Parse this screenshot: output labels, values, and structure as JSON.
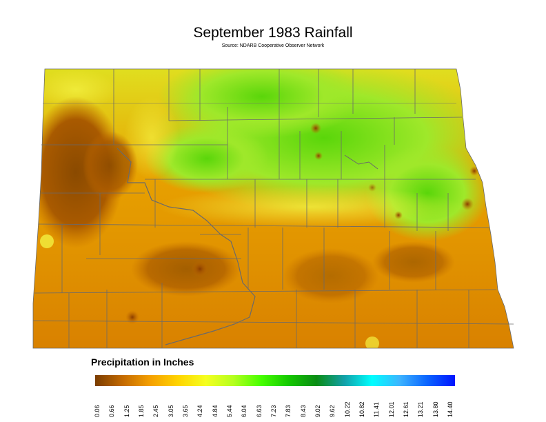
{
  "title": "September 1983 Rainfall",
  "subtitle": "Source: NDARB Cooperative Observer Network",
  "legend": {
    "title": "Precipitation in Inches",
    "ticks": [
      "0.06",
      "0.66",
      "1.25",
      "1.85",
      "2.45",
      "3.05",
      "3.65",
      "4.24",
      "4.84",
      "5.44",
      "6.04",
      "6.63",
      "7.23",
      "7.83",
      "8.43",
      "9.02",
      "9.62",
      "10.22",
      "10.82",
      "11.41",
      "12.01",
      "12.61",
      "13.21",
      "13.80",
      "14.40"
    ],
    "colors": [
      "#7a3c00",
      "#c46a00",
      "#f5a000",
      "#ffd400",
      "#f5ff20",
      "#b4ff1e",
      "#46ff00",
      "#14c800",
      "#0a8c14",
      "#12a0a8",
      "#00ffff",
      "#3cb4ff",
      "#0a64ff",
      "#0014ff"
    ]
  },
  "map": {
    "region": "North Dakota counties",
    "color_scale": {
      "dry": "#7a3c00",
      "moderate": "#ffd400",
      "wet": "#46ff00"
    }
  }
}
